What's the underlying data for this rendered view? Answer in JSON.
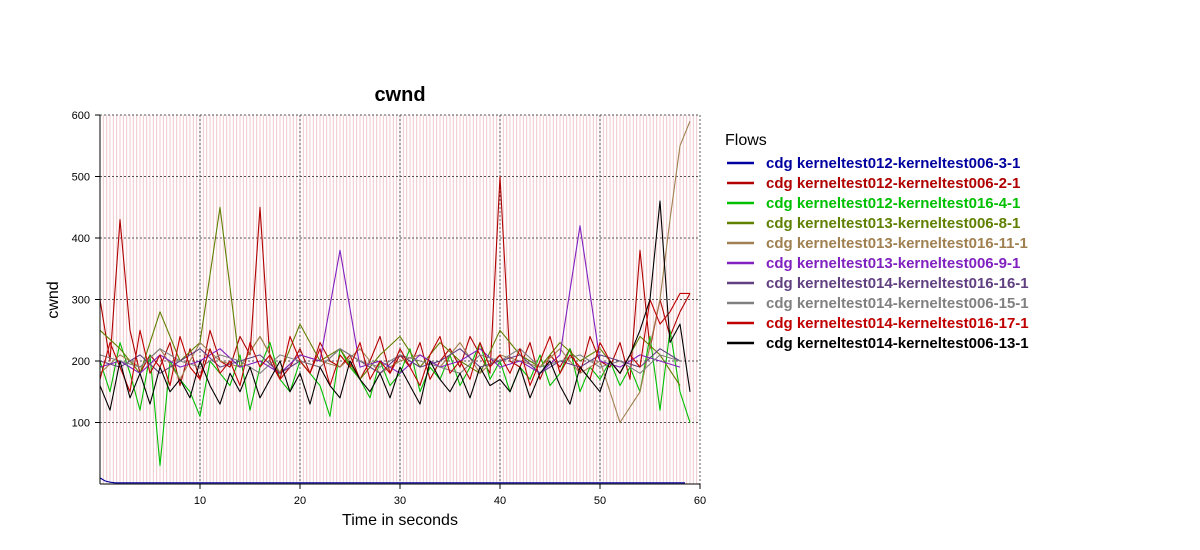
{
  "chart_data": {
    "type": "line",
    "title": "cwnd",
    "xlabel": "Time in seconds",
    "ylabel": "cwnd",
    "xlim": [
      0,
      60
    ],
    "ylim": [
      0,
      600
    ],
    "xticks": [
      10,
      20,
      30,
      40,
      50,
      60
    ],
    "yticks": [
      100,
      200,
      300,
      400,
      500,
      600
    ],
    "grid": true,
    "legend_title": "Flows",
    "legend_position": "right",
    "sample_interval_s": 1,
    "series": [
      {
        "name": "cdg kerneltest012-kerneltest006-3-1",
        "color": "#0000a0",
        "x": [
          0,
          0.5,
          1,
          1.5,
          2,
          5,
          10,
          20,
          30,
          40,
          45,
          48,
          48.5,
          49,
          50,
          55,
          58.5
        ],
        "y": [
          10,
          5,
          3,
          2,
          2,
          2,
          2,
          2,
          2,
          2,
          2,
          2,
          2,
          2,
          2,
          2,
          2
        ]
      },
      {
        "name": "cdg kerneltest012-kerneltest006-2-1",
        "color": "#b00000",
        "x": [
          0,
          1,
          2,
          3,
          4,
          5,
          6,
          7,
          8,
          9,
          10,
          11,
          12,
          13,
          14,
          15,
          16,
          17,
          18,
          19,
          20,
          21,
          22,
          23,
          24,
          25,
          26,
          27,
          28,
          29,
          30,
          31,
          32,
          33,
          34,
          35,
          36,
          37,
          38,
          39,
          40,
          41,
          42,
          43,
          44,
          45,
          46,
          47,
          48,
          49,
          50,
          51,
          52,
          53,
          54,
          55,
          56,
          57,
          58,
          59
        ],
        "y": [
          300,
          200,
          430,
          250,
          180,
          210,
          190,
          230,
          160,
          220,
          170,
          250,
          200,
          190,
          240,
          210,
          450,
          200,
          170,
          190,
          220,
          180,
          230,
          200,
          190,
          210,
          170,
          200,
          240,
          180,
          210,
          190,
          230,
          170,
          200,
          220,
          190,
          240,
          210,
          180,
          500,
          200,
          190,
          230,
          170,
          210,
          190,
          220,
          180,
          240,
          200,
          190,
          230,
          170,
          380,
          220,
          300,
          240,
          280,
          310
        ]
      },
      {
        "name": "cdg kerneltest012-kerneltest016-4-1",
        "color": "#00c000",
        "x": [
          0,
          1,
          2,
          3,
          4,
          5,
          6,
          7,
          8,
          9,
          10,
          11,
          12,
          13,
          14,
          15,
          16,
          17,
          18,
          19,
          20,
          21,
          22,
          23,
          24,
          25,
          26,
          27,
          28,
          29,
          30,
          31,
          32,
          33,
          34,
          35,
          36,
          37,
          38,
          39,
          40,
          41,
          42,
          43,
          44,
          45,
          46,
          47,
          48,
          49,
          50,
          51,
          52,
          53,
          54,
          55,
          56,
          57,
          58,
          59
        ],
        "y": [
          200,
          150,
          230,
          180,
          120,
          210,
          30,
          200,
          170,
          150,
          110,
          200,
          180,
          160,
          210,
          120,
          190,
          230,
          170,
          150,
          200,
          180,
          160,
          110,
          220,
          190,
          170,
          140,
          200,
          160,
          180,
          220,
          150,
          190,
          170,
          210,
          160,
          190,
          230,
          170,
          200,
          150,
          190,
          170,
          210,
          160,
          180,
          220,
          150,
          190,
          170,
          200,
          160,
          190,
          150,
          240,
          120,
          250,
          150,
          100
        ]
      },
      {
        "name": "cdg kerneltest013-kerneltest006-8-1",
        "color": "#608000",
        "x": [
          0,
          2,
          4,
          6,
          8,
          10,
          12,
          14,
          16,
          18,
          20,
          22,
          24,
          26,
          28,
          30,
          32,
          34,
          36,
          38,
          40,
          42,
          44,
          46,
          48,
          50,
          52,
          54,
          56,
          58
        ],
        "y": [
          250,
          220,
          180,
          280,
          200,
          230,
          450,
          190,
          240,
          180,
          260,
          200,
          220,
          170,
          210,
          240,
          190,
          230,
          200,
          180,
          250,
          210,
          190,
          230,
          200,
          220,
          180,
          240,
          210,
          160
        ]
      },
      {
        "name": "cdg kerneltest013-kerneltest016-11-1",
        "color": "#a08050",
        "x": [
          0,
          2,
          4,
          6,
          8,
          10,
          12,
          14,
          16,
          18,
          20,
          22,
          24,
          26,
          28,
          30,
          32,
          34,
          36,
          38,
          40,
          42,
          44,
          46,
          48,
          50,
          52,
          54,
          56,
          57,
          58,
          59
        ],
        "y": [
          180,
          210,
          190,
          220,
          170,
          230,
          200,
          190,
          240,
          180,
          210,
          200,
          190,
          220,
          180,
          200,
          210,
          190,
          230,
          180,
          210,
          200,
          190,
          220,
          180,
          200,
          100,
          150,
          300,
          430,
          550,
          590
        ]
      },
      {
        "name": "cdg kerneltest013-kerneltest006-9-1",
        "color": "#8020c0",
        "x": [
          0,
          2,
          4,
          6,
          8,
          10,
          12,
          14,
          16,
          18,
          20,
          22,
          24,
          26,
          28,
          30,
          32,
          34,
          36,
          38,
          40,
          42,
          44,
          46,
          48,
          50,
          52,
          54,
          56,
          58
        ],
        "y": [
          190,
          200,
          180,
          210,
          190,
          200,
          220,
          190,
          200,
          180,
          210,
          200,
          380,
          190,
          200,
          180,
          210,
          190,
          200,
          220,
          190,
          200,
          180,
          210,
          420,
          200,
          190,
          210,
          200,
          190
        ]
      },
      {
        "name": "cdg kerneltest014-kerneltest016-16-1",
        "color": "#604080",
        "x": [
          0,
          2,
          4,
          6,
          8,
          10,
          12,
          14,
          16,
          18,
          20,
          22,
          24,
          26,
          28,
          30,
          32,
          34,
          36,
          38,
          40,
          42,
          44,
          46,
          48,
          50,
          52,
          54,
          56,
          58
        ],
        "y": [
          200,
          190,
          210,
          180,
          200,
          220,
          190,
          200,
          210,
          180,
          200,
          190,
          220,
          200,
          180,
          210,
          190,
          200,
          220,
          190,
          200,
          210,
          180,
          200,
          190,
          210,
          200,
          190,
          220,
          200
        ]
      },
      {
        "name": "cdg kerneltest014-kerneltest006-15-1",
        "color": "#808080",
        "x": [
          0,
          2,
          4,
          6,
          8,
          10,
          12,
          14,
          16,
          18,
          20,
          22,
          24,
          26,
          28,
          30,
          32,
          34,
          36,
          38,
          40,
          42,
          44,
          46,
          48,
          50,
          52,
          54,
          56,
          58
        ],
        "y": [
          210,
          200,
          190,
          220,
          200,
          190,
          210,
          200,
          180,
          210,
          200,
          190,
          220,
          200,
          190,
          210,
          200,
          190,
          180,
          210,
          200,
          220,
          190,
          200,
          210,
          190,
          200,
          180,
          210,
          200
        ]
      },
      {
        "name": "cdg kerneltest014-kerneltest016-17-1",
        "color": "#c00000",
        "x": [
          0,
          1,
          2,
          3,
          4,
          5,
          6,
          7,
          8,
          9,
          10,
          11,
          12,
          13,
          14,
          15,
          16,
          17,
          18,
          19,
          20,
          21,
          22,
          23,
          24,
          25,
          26,
          27,
          28,
          29,
          30,
          31,
          32,
          33,
          34,
          35,
          36,
          37,
          38,
          39,
          40,
          41,
          42,
          43,
          44,
          45,
          46,
          47,
          48,
          49,
          50,
          51,
          52,
          53,
          54,
          55,
          56,
          57,
          58,
          59
        ],
        "y": [
          170,
          230,
          190,
          150,
          250,
          180,
          210,
          160,
          240,
          190,
          170,
          220,
          180,
          200,
          160,
          230,
          190,
          210,
          170,
          240,
          200,
          180,
          220,
          160,
          210,
          190,
          230,
          170,
          200,
          180,
          220,
          190,
          160,
          210,
          240,
          180,
          200,
          170,
          230,
          190,
          210,
          180,
          220,
          160,
          200,
          240,
          180,
          210,
          190,
          170,
          230,
          200,
          180,
          210,
          190,
          300,
          260,
          280,
          310,
          310
        ]
      },
      {
        "name": "cdg kerneltest014-kerneltest006-13-1",
        "color": "#000000",
        "x": [
          0,
          1,
          2,
          3,
          4,
          5,
          6,
          7,
          8,
          9,
          10,
          11,
          12,
          13,
          14,
          15,
          16,
          17,
          18,
          19,
          20,
          21,
          22,
          23,
          24,
          25,
          26,
          27,
          28,
          29,
          30,
          31,
          32,
          33,
          34,
          35,
          36,
          37,
          38,
          39,
          40,
          41,
          42,
          43,
          44,
          45,
          46,
          47,
          48,
          49,
          50,
          51,
          52,
          53,
          54,
          55,
          56,
          57,
          58,
          59
        ],
        "y": [
          160,
          120,
          200,
          140,
          180,
          130,
          190,
          150,
          170,
          140,
          200,
          160,
          130,
          180,
          150,
          190,
          140,
          170,
          200,
          150,
          180,
          130,
          190,
          160,
          140,
          200,
          170,
          150,
          180,
          140,
          190,
          160,
          130,
          200,
          170,
          150,
          180,
          140,
          190,
          160,
          170,
          150,
          190,
          140,
          180,
          200,
          160,
          130,
          190,
          170,
          150,
          200,
          180,
          210,
          250,
          300,
          460,
          230,
          260,
          150
        ]
      }
    ]
  }
}
